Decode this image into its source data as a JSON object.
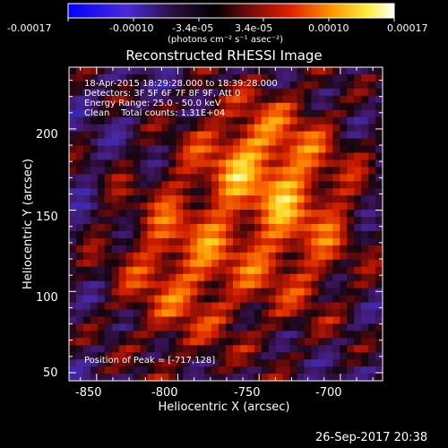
{
  "colorbar": {
    "tick_labels": [
      "-0.00017",
      "-0.00010",
      "-3.4e-05",
      "3.4e-05",
      "0.00010",
      "0.00017"
    ],
    "unit_label": "(photons cm⁻² s⁻¹ asec⁻²)",
    "colors": [
      "#0000ff",
      "#000000",
      "#ff0000",
      "#ffff00",
      "#ffffff"
    ]
  },
  "image": {
    "title": "Reconstructed RHESSI Image",
    "info_lines": [
      "18-Apr-2015 18:29:28.000 to 18:39:28.000",
      "Detectors: 3F 5F 6F 7F 8F 9F, Att 0",
      "Energy Range: 25.0 - 50.0 keV",
      "Clean    Total counts: 1.31E+04"
    ],
    "peak_label": "Position of Peak = [-717,128]",
    "colormap": "hot with blue negatives"
  },
  "axes": {
    "xlabel": "Heliocentric X (arcsec)",
    "ylabel": "Heliocentric Y (arcsec)",
    "x_ticks": [
      "-850",
      "-800",
      "-750",
      "-700"
    ],
    "y_ticks": [
      "50",
      "100",
      "150",
      "200"
    ]
  },
  "footer": {
    "timestamp": "26-Sep-2017 20:38"
  }
}
